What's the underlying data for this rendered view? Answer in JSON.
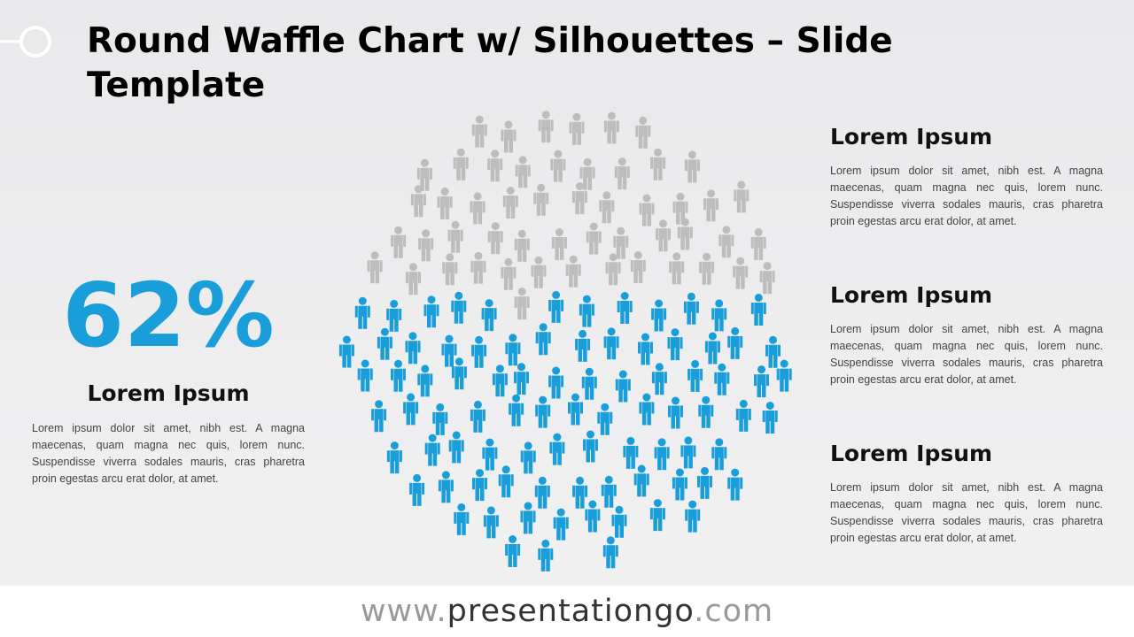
{
  "header": {
    "title": "Round Waffle Chart w/ Silhouettes – Slide Template"
  },
  "chart_data": {
    "type": "waffle",
    "values": [
      62
    ],
    "value_labels": [
      "62%"
    ],
    "color": "#1a9ed9",
    "rest_color": "#bdbdbd"
  },
  "left": {
    "heading": "Lorem Ipsum",
    "text": "Lorem ipsum dolor sit amet, nibh est. A magna maecenas, quam magna nec quis, lorem nunc. Suspendisse viverra sodales mauris, cras pharetra proin egestas arcu erat dolor, at amet."
  },
  "right": [
    {
      "heading": "Lorem Ipsum",
      "text": "Lorem ipsum dolor sit amet, nibh est. A magna maecenas, quam magna nec quis, lorem nunc. Suspendisse viverra sodales mauris, cras pharetra proin egestas arcu erat dolor, at amet."
    },
    {
      "heading": "Lorem Ipsum",
      "text": "Lorem ipsum dolor sit amet, nibh est. A magna maecenas, quam magna nec quis, lorem nunc. Suspendisse viverra sodales mauris, cras pharetra proin egestas arcu erat dolor, at amet."
    },
    {
      "heading": "Lorem Ipsum",
      "text": "Lorem ipsum dolor sit amet, nibh est. A magna maecenas, quam magna nec quis, lorem nunc. Suspendisse viverra sodales mauris, cras pharetra proin egestas arcu erat dolor, at amet."
    }
  ],
  "footer": {
    "prefix": "www.",
    "domain": "presentationgo",
    "suffix": ".com"
  }
}
